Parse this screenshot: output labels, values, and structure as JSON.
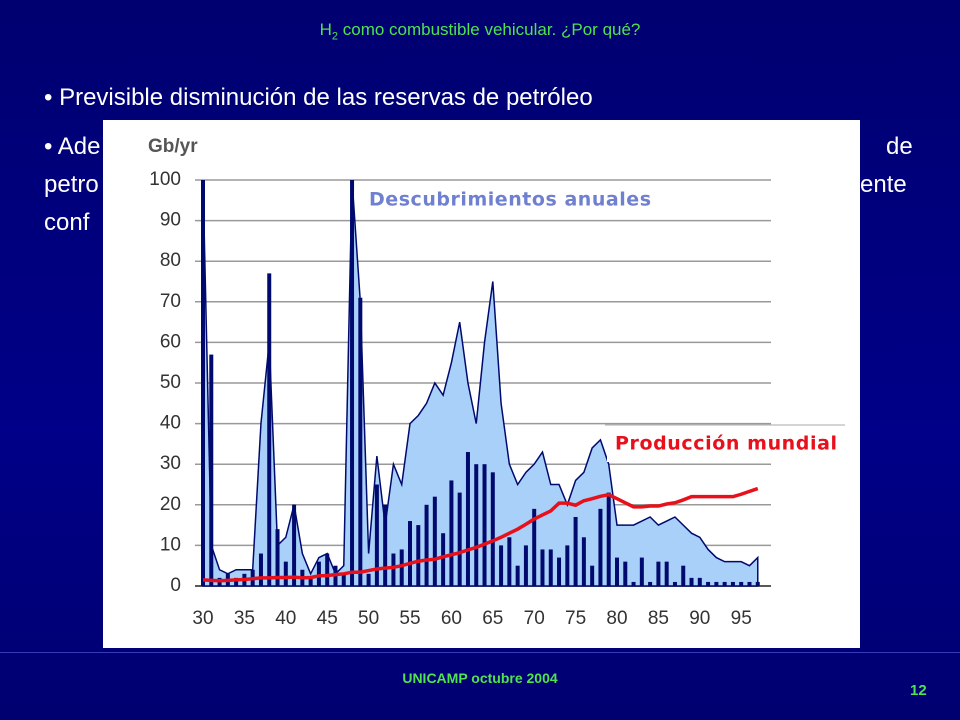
{
  "slide": {
    "title_main": "H",
    "title_sub": "2",
    "title_rest": " como combustible vehicular. ¿Por qué?",
    "bullet1": "• Previsible disminución de las reservas de petróleo",
    "bullet2_fragments": [
      "• Ade",
      "de",
      "petro",
      "ente",
      "conf"
    ],
    "footer": "UNICAMP octubre 2004",
    "page_number": "12"
  },
  "chart_data": {
    "type": "bar",
    "ylabel": "Gb/yr",
    "x": [
      30,
      31,
      32,
      33,
      34,
      35,
      36,
      37,
      38,
      39,
      40,
      41,
      42,
      43,
      44,
      45,
      46,
      47,
      48,
      49,
      50,
      51,
      52,
      53,
      54,
      55,
      56,
      57,
      58,
      59,
      60,
      61,
      62,
      63,
      64,
      65,
      66,
      67,
      68,
      69,
      70,
      71,
      72,
      73,
      74,
      75,
      76,
      77,
      78,
      79,
      80,
      81,
      82,
      83,
      84,
      85,
      86,
      87,
      88,
      89,
      90,
      91,
      92,
      93,
      94,
      95,
      96,
      97
    ],
    "xlim": [
      29,
      98
    ],
    "xticks": [
      30,
      35,
      40,
      45,
      50,
      55,
      60,
      65,
      70,
      75,
      80,
      85,
      90,
      95
    ],
    "ylim": [
      0,
      100
    ],
    "yticks": [
      0,
      10,
      20,
      30,
      40,
      50,
      60,
      70,
      80,
      90,
      100
    ],
    "grid": true,
    "series": [
      {
        "color": "#a8d0f8",
        "kind": "area",
        "values": [
          100,
          10,
          4,
          3,
          4,
          4,
          4,
          40,
          60,
          10,
          12,
          20,
          8,
          3,
          7,
          8,
          3,
          5,
          100,
          70,
          8,
          32,
          15,
          30,
          25,
          40,
          42,
          45,
          50,
          47,
          55,
          65,
          50,
          40,
          60,
          75,
          45,
          30,
          25,
          28,
          30,
          33,
          25,
          25,
          20,
          26,
          28,
          34,
          36,
          30,
          15,
          15,
          15,
          16,
          17,
          15,
          16,
          17,
          15,
          13,
          12,
          9,
          7,
          6,
          6,
          6,
          5,
          7
        ]
      },
      {
        "name": "Descubrimientos anuales",
        "color": "#000a6e",
        "kind": "bar",
        "values": [
          100,
          57,
          2,
          3,
          2,
          3,
          4,
          8,
          77,
          14,
          6,
          20,
          4,
          2,
          6,
          8,
          5,
          3,
          100,
          71,
          3,
          25,
          20,
          8,
          9,
          16,
          15,
          20,
          22,
          13,
          26,
          23,
          33,
          30,
          30,
          28,
          10,
          12,
          5,
          10,
          19,
          9,
          9,
          7,
          10,
          17,
          12,
          5,
          19,
          23,
          7,
          6,
          1,
          7,
          1,
          6,
          6,
          1,
          5,
          2,
          2,
          1,
          1,
          1,
          1,
          1,
          1,
          1
        ]
      },
      {
        "name": "Producción mundial",
        "color": "#e8101a",
        "kind": "line",
        "values": [
          1.5,
          1.4,
          1.3,
          1.4,
          1.5,
          1.6,
          1.8,
          2,
          2,
          2.1,
          2.1,
          2.2,
          2,
          2.1,
          2.5,
          2.6,
          2.8,
          3,
          3.4,
          3.4,
          3.8,
          4.2,
          4.4,
          4.6,
          5,
          5.6,
          6.1,
          6.4,
          6.6,
          7.2,
          7.7,
          8.2,
          8.9,
          9.5,
          10.3,
          11.1,
          12,
          13,
          14,
          15.2,
          16.5,
          17.5,
          18.5,
          20.4,
          20.4,
          19.9,
          21,
          21.5,
          22.1,
          22.5,
          21.5,
          20.5,
          19.5,
          19.5,
          19.7,
          19.7,
          20.2,
          20.5,
          21.2,
          22,
          22,
          22,
          22,
          22,
          22,
          22.6,
          23.3,
          24
        ]
      }
    ]
  }
}
